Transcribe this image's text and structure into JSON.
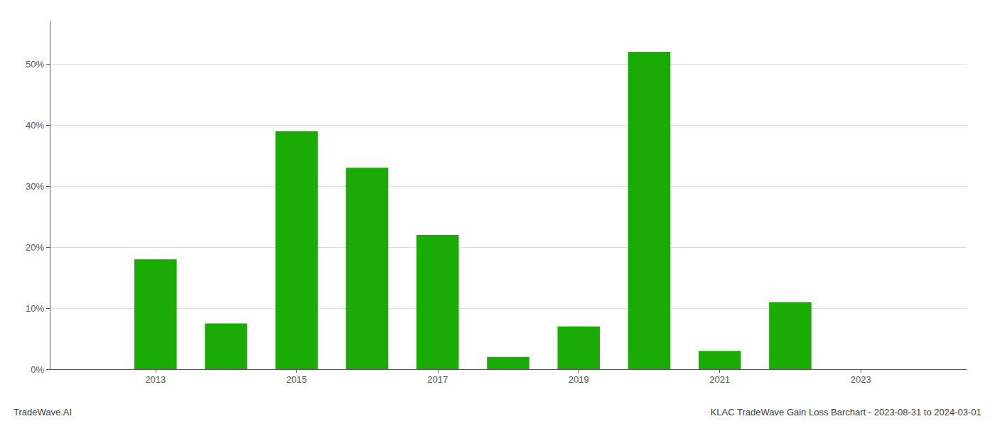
{
  "chart_data": {
    "type": "bar",
    "title": "KLAC TradeWave Gain Loss Barchart - 2023-08-31 to 2024-03-01",
    "annotations": [
      "TradeWave.AI"
    ],
    "x": [
      2013,
      2014,
      2015,
      2016,
      2017,
      2018,
      2019,
      2020,
      2021,
      2022,
      2023
    ],
    "values": [
      0.18,
      0.075,
      0.39,
      0.33,
      0.22,
      0.02,
      0.07,
      0.52,
      0.03,
      0.11,
      0.0
    ],
    "color": "#1aab04",
    "xlim": [
      2011.5,
      2024.5
    ],
    "xticks": [
      2013,
      2015,
      2017,
      2019,
      2021,
      2023
    ],
    "ylim": [
      0,
      0.57
    ],
    "yticks": [
      {
        "value": 0.0,
        "label": "0%"
      },
      {
        "value": 0.1,
        "label": "10%"
      },
      {
        "value": 0.2,
        "label": "20%"
      },
      {
        "value": 0.3,
        "label": "30%"
      },
      {
        "value": 0.4,
        "label": "40%"
      },
      {
        "value": 0.5,
        "label": "50%"
      }
    ],
    "grid": true
  }
}
